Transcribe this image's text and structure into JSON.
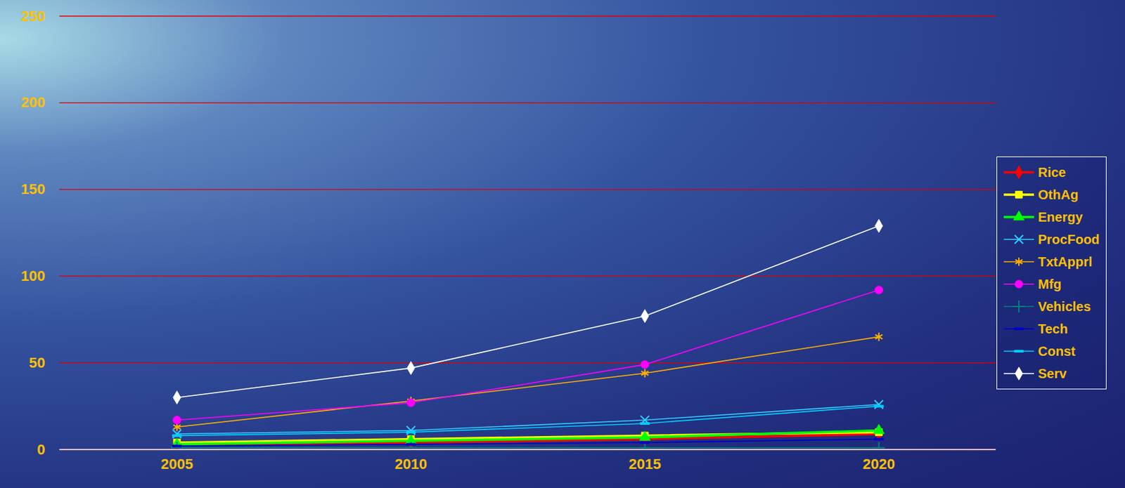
{
  "chart_data": {
    "type": "line",
    "categories": [
      "2005",
      "2010",
      "2015",
      "2020"
    ],
    "ylim": [
      0,
      250
    ],
    "yticks": [
      0,
      50,
      100,
      150,
      200,
      250
    ],
    "grid": true,
    "legend": "right",
    "series": [
      {
        "name": "Rice",
        "color": "#ff0000",
        "marker": "diamond",
        "values": [
          3,
          4,
          6,
          9
        ]
      },
      {
        "name": "OthAg",
        "color": "#ffff00",
        "marker": "square",
        "values": [
          4,
          6,
          8,
          10
        ]
      },
      {
        "name": "Energy",
        "color": "#00ff00",
        "marker": "triangle",
        "values": [
          3,
          5,
          7,
          11
        ]
      },
      {
        "name": "ProcFood",
        "color": "#33ccff",
        "marker": "times",
        "values": [
          9,
          11,
          17,
          26
        ]
      },
      {
        "name": "TxtApprl",
        "color": "#ffb000",
        "marker": "asterisk",
        "values": [
          13,
          28,
          44,
          65
        ]
      },
      {
        "name": "Mfg",
        "color": "#ff00ff",
        "marker": "circle",
        "values": [
          17,
          27,
          49,
          92
        ]
      },
      {
        "name": "Vehicles",
        "color": "#008080",
        "marker": "plus",
        "values": [
          1,
          1,
          1,
          1
        ]
      },
      {
        "name": "Tech",
        "color": "#0000cc",
        "marker": "dash",
        "values": [
          2,
          3,
          4,
          6
        ]
      },
      {
        "name": "Const",
        "color": "#00ccff",
        "marker": "dash",
        "values": [
          8,
          10,
          15,
          25
        ]
      },
      {
        "name": "Serv",
        "color": "#ffffff",
        "marker": "diamond",
        "values": [
          30,
          47,
          77,
          129
        ]
      }
    ]
  }
}
